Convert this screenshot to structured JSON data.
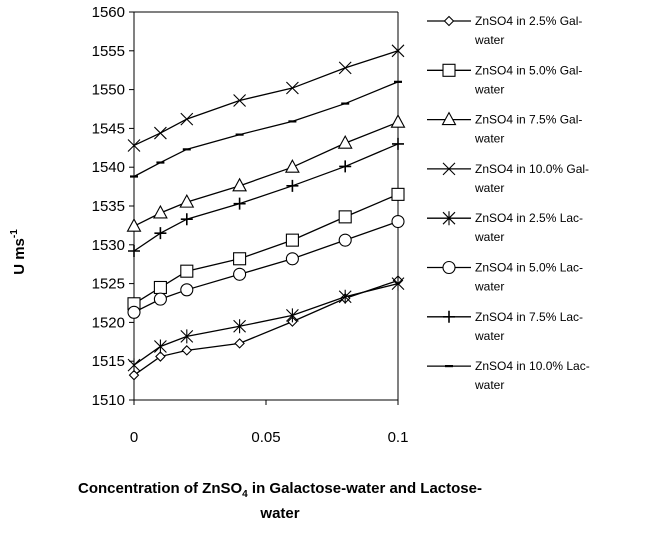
{
  "chart_data": {
    "type": "line",
    "xlabel": {
      "part1": "Concentration of ZnSO",
      "sub": "4",
      "part2": " in Galactose-water and Lactose-",
      "line2": "water"
    },
    "ylabel": {
      "main": "U ms",
      "sup": "-1"
    },
    "xlim": [
      0,
      0.1
    ],
    "ylim": [
      1510,
      1560
    ],
    "xticks": [
      {
        "value": 0,
        "label": "0"
      },
      {
        "value": 0.05,
        "label": "0.05"
      },
      {
        "value": 0.1,
        "label": "0.1"
      }
    ],
    "yticks": [
      {
        "value": 1510,
        "label": "1510"
      },
      {
        "value": 1515,
        "label": "1515"
      },
      {
        "value": 1520,
        "label": "1520"
      },
      {
        "value": 1525,
        "label": "1525"
      },
      {
        "value": 1530,
        "label": "1530"
      },
      {
        "value": 1535,
        "label": "1535"
      },
      {
        "value": 1540,
        "label": "1540"
      },
      {
        "value": 1545,
        "label": "1545"
      },
      {
        "value": 1550,
        "label": "1550"
      },
      {
        "value": 1555,
        "label": "1555"
      },
      {
        "value": 1560,
        "label": "1560"
      }
    ],
    "grid": false,
    "legend_position": "right",
    "x": [
      0,
      0.01,
      0.02,
      0.04,
      0.06,
      0.08,
      0.1
    ],
    "series": [
      {
        "name": "ZnSO4 in 2.5% Gal-water",
        "legend_lines": [
          "ZnSO4 in 2.5% Gal-",
          "water"
        ],
        "marker": "diamond",
        "values": [
          1513.2,
          1515.6,
          1516.4,
          1517.3,
          1520.1,
          1523.1,
          1525.4
        ]
      },
      {
        "name": "ZnSO4 in 5.0% Gal-water",
        "legend_lines": [
          "ZnSO4 in 5.0% Gal-",
          "water"
        ],
        "marker": "square",
        "values": [
          1522.4,
          1524.5,
          1526.6,
          1528.2,
          1530.6,
          1533.6,
          1536.5
        ]
      },
      {
        "name": "ZnSO4 in 7.5% Gal-water",
        "legend_lines": [
          "ZnSO4 in 7.5% Gal-",
          "water"
        ],
        "marker": "triangle",
        "values": [
          1532.4,
          1534.1,
          1535.5,
          1537.6,
          1540.0,
          1543.1,
          1545.8
        ]
      },
      {
        "name": "ZnSO4 in 10.0% Gal-water",
        "legend_lines": [
          "ZnSO4 in 10.0% Gal-",
          "water"
        ],
        "marker": "x",
        "values": [
          1542.8,
          1544.4,
          1546.2,
          1548.6,
          1550.2,
          1552.8,
          1555.0
        ]
      },
      {
        "name": "ZnSO4 in 2.5% Lac-water",
        "legend_lines": [
          "ZnSO4 in 2.5% Lac-",
          "water"
        ],
        "marker": "asterisk",
        "values": [
          1514.5,
          1516.9,
          1518.2,
          1519.5,
          1520.9,
          1523.3,
          1525.0
        ]
      },
      {
        "name": "ZnSO4 in 5.0% Lac-water",
        "legend_lines": [
          "ZnSO4 in 5.0% Lac-",
          "water"
        ],
        "marker": "circle",
        "values": [
          1521.3,
          1523.0,
          1524.2,
          1526.2,
          1528.2,
          1530.6,
          1533.0
        ]
      },
      {
        "name": "ZnSO4 in 7.5% Lac-water",
        "legend_lines": [
          "ZnSO4 in 7.5% Lac-",
          "water"
        ],
        "marker": "plus",
        "values": [
          1529.2,
          1531.5,
          1533.3,
          1535.3,
          1537.6,
          1540.1,
          1543.0
        ]
      },
      {
        "name": "ZnSO4 in 10.0% Lac-water",
        "legend_lines": [
          "ZnSO4 in 10.0% Lac-",
          "water"
        ],
        "marker": "dash",
        "values": [
          1538.8,
          1540.6,
          1542.3,
          1544.2,
          1545.9,
          1548.2,
          1551.0
        ]
      }
    ]
  }
}
